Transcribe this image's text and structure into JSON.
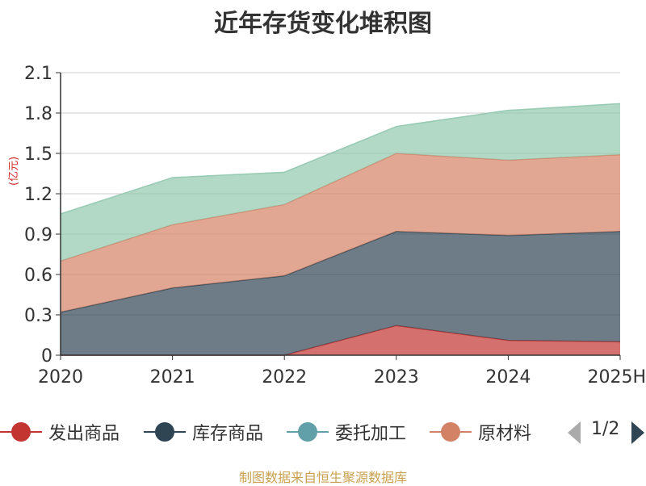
{
  "chart_data": {
    "type": "area",
    "stacked": true,
    "title": "近年存货变化堆积图",
    "ylabel": "(亿元)",
    "xlabel": "",
    "categories": [
      "2020",
      "2021",
      "2022",
      "2023",
      "2024",
      "2025H"
    ],
    "yticks": [
      "0",
      "0.3",
      "0.6",
      "0.9",
      "1.2",
      "1.5",
      "1.8",
      "2.1"
    ],
    "ylim": [
      0,
      2.1
    ],
    "grid": true,
    "legend_position": "bottom",
    "series": [
      {
        "name": "发出商品",
        "color": "#c23531",
        "values": [
          0,
          0,
          0,
          0.22,
          0.11,
          0.1
        ]
      },
      {
        "name": "库存商品",
        "color": "#2f4554",
        "values": [
          0.32,
          0.5,
          0.59,
          0.7,
          0.78,
          0.82
        ]
      },
      {
        "name": "委托加工",
        "color": "#61a0a8",
        "values": [
          0,
          0,
          0,
          0,
          0,
          0
        ]
      },
      {
        "name": "原材料",
        "color": "#d48265",
        "values": [
          0.38,
          0.47,
          0.53,
          0.58,
          0.56,
          0.57
        ]
      },
      {
        "name": "",
        "color": "#91c7ae",
        "values": [
          0.35,
          0.35,
          0.24,
          0.2,
          0.37,
          0.38
        ]
      }
    ]
  },
  "legend": {
    "items": [
      {
        "label": "发出商品",
        "color": "#c23531"
      },
      {
        "label": "库存商品",
        "color": "#2f4554"
      },
      {
        "label": "委托加工",
        "color": "#61a0a8"
      },
      {
        "label": "原材料",
        "color": "#d48265"
      }
    ],
    "page": "1/2"
  },
  "source": "制图数据来自恒生聚源数据库"
}
